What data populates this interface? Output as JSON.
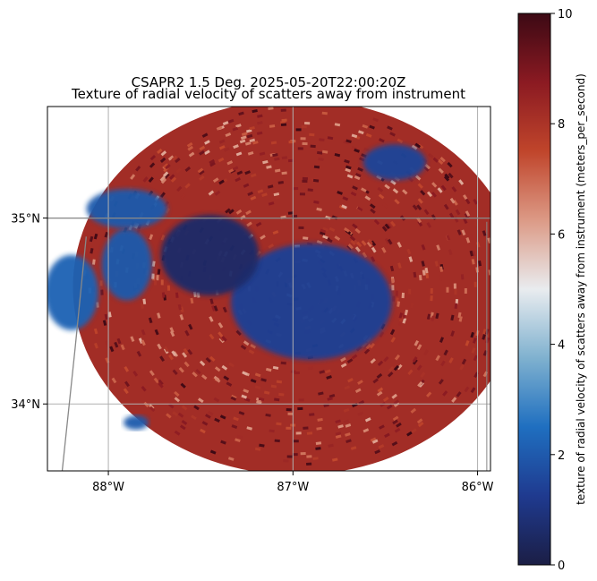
{
  "chart_data": {
    "type": "heatmap",
    "title": "CSAPR2 1.5 Deg. 2025-05-20T22:00:20Z",
    "subtitle": "Texture of radial velocity of scatters away from instrument",
    "colorbar": {
      "label": "texture of radial velocity of scatters away from instrument (meters_per_second)",
      "range": [
        0,
        10
      ],
      "ticks": [
        0,
        2,
        4,
        6,
        8,
        10
      ],
      "tick_labels": [
        "0",
        "2",
        "4",
        "6",
        "8",
        "10"
      ],
      "colormap": [
        "#1b1e45",
        "#1f3a8f",
        "#1f6fc0",
        "#7fb1cf",
        "#e9ecef",
        "#dc9a86",
        "#c0452b",
        "#8b1a22",
        "#3c0914"
      ]
    },
    "x_axis": {
      "tick_values": [
        -88,
        -87,
        -86
      ],
      "tick_labels": [
        "88°W",
        "87°W",
        "86°W"
      ],
      "range": [
        -88.33,
        -85.93
      ]
    },
    "y_axis": {
      "tick_values": [
        34,
        35
      ],
      "tick_labels": [
        "34°N",
        "35°N"
      ],
      "range": [
        33.64,
        35.6
      ]
    },
    "radar_center": {
      "lon": -86.98,
      "lat": 34.63
    },
    "gridlines": true,
    "low_texture_regions": [
      {
        "lon": -86.9,
        "lat": 34.55,
        "level": 1.4
      },
      {
        "lon": -87.45,
        "lat": 34.8,
        "level": 0.6
      },
      {
        "lon": -87.9,
        "lat": 34.75,
        "level": 2.0
      },
      {
        "lon": -86.45,
        "lat": 35.3,
        "level": 1.5
      },
      {
        "lon": -87.9,
        "lat": 35.05,
        "level": 2.0
      },
      {
        "lon": -88.2,
        "lat": 34.6,
        "level": 2.2
      },
      {
        "lon": -87.85,
        "lat": 33.9,
        "level": 2.0
      }
    ]
  }
}
